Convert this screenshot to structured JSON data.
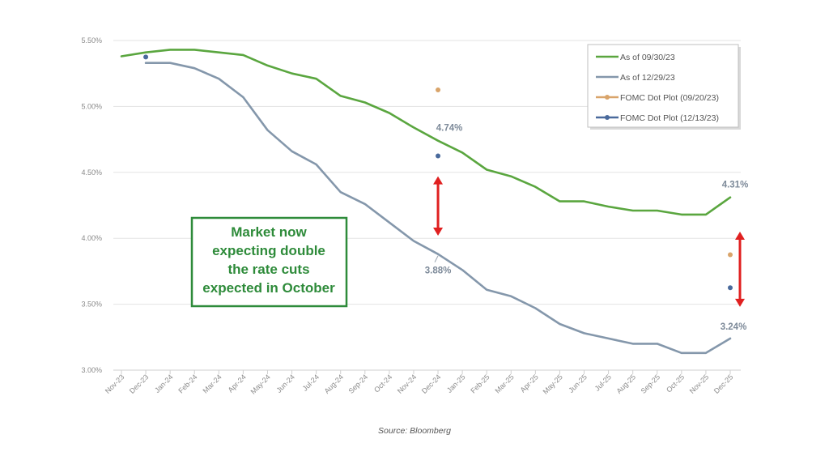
{
  "chart_data": {
    "type": "line",
    "title": "",
    "xlabel": "",
    "ylabel": "",
    "categories": [
      "Nov-23",
      "Dec-23",
      "Jan-24",
      "Feb-24",
      "Mar-24",
      "Apr-24",
      "May-24",
      "Jun-24",
      "Jul-24",
      "Aug-24",
      "Sep-24",
      "Oct-24",
      "Nov-24",
      "Dec-24",
      "Jan-25",
      "Feb-25",
      "Mar-25",
      "Apr-25",
      "May-25",
      "Jun-25",
      "Jul-25",
      "Aug-25",
      "Sep-25",
      "Oct-25",
      "Nov-25",
      "Dec-25"
    ],
    "ylim": [
      3.0,
      5.5
    ],
    "yticks": [
      {
        "value": 5.5,
        "label": "5.50%"
      },
      {
        "value": 5.0,
        "label": "5.00%"
      },
      {
        "value": 4.5,
        "label": "4.50%"
      },
      {
        "value": 4.0,
        "label": "4.00%"
      },
      {
        "value": 3.5,
        "label": "3.50%"
      },
      {
        "value": 3.0,
        "label": "3.00%"
      }
    ],
    "grid": "horizontal",
    "legend_position": "top-right",
    "series": [
      {
        "name": "As of 09/30/23",
        "kind": "line",
        "color": "#5aa63f",
        "x": [
          "Nov-23",
          "Dec-23",
          "Jan-24",
          "Feb-24",
          "Mar-24",
          "Apr-24",
          "May-24",
          "Jun-24",
          "Jul-24",
          "Aug-24",
          "Sep-24",
          "Oct-24",
          "Nov-24",
          "Dec-24",
          "Jan-25",
          "Feb-25",
          "Mar-25",
          "Apr-25",
          "May-25",
          "Jun-25",
          "Jul-25",
          "Aug-25",
          "Sep-25",
          "Oct-25",
          "Nov-25",
          "Dec-25"
        ],
        "values": [
          5.38,
          5.41,
          5.43,
          5.43,
          5.41,
          5.39,
          5.31,
          5.25,
          5.21,
          5.08,
          5.03,
          4.95,
          4.84,
          4.74,
          4.65,
          4.52,
          4.47,
          4.39,
          4.28,
          4.28,
          4.24,
          4.21,
          4.21,
          4.18,
          4.18,
          4.31
        ]
      },
      {
        "name": "As of 12/29/23",
        "kind": "line",
        "color": "#8497ab",
        "x": [
          "Dec-23",
          "Jan-24",
          "Feb-24",
          "Mar-24",
          "Apr-24",
          "May-24",
          "Jun-24",
          "Jul-24",
          "Aug-24",
          "Sep-24",
          "Oct-24",
          "Nov-24",
          "Dec-24",
          "Jan-25",
          "Feb-25",
          "Mar-25",
          "Apr-25",
          "May-25",
          "Jun-25",
          "Jul-25",
          "Aug-25",
          "Sep-25",
          "Oct-25",
          "Nov-25",
          "Dec-25"
        ],
        "values": [
          5.33,
          5.33,
          5.29,
          5.21,
          5.07,
          4.82,
          4.66,
          4.56,
          4.35,
          4.26,
          4.12,
          3.98,
          3.88,
          3.76,
          3.61,
          3.56,
          3.47,
          3.35,
          3.28,
          3.24,
          3.2,
          3.2,
          3.13,
          3.13,
          3.24
        ]
      },
      {
        "name": "FOMC Dot Plot (09/20/23)",
        "kind": "dot",
        "color": "#d9a46a",
        "x": [
          "Dec-24",
          "Dec-25"
        ],
        "values": [
          5.125,
          3.875
        ]
      },
      {
        "name": "FOMC Dot Plot (12/13/23)",
        "kind": "dot",
        "color": "#4a6a9c",
        "x": [
          "Dec-23",
          "Dec-24",
          "Dec-25"
        ],
        "values": [
          5.375,
          4.625,
          3.625
        ]
      }
    ],
    "data_labels": [
      {
        "text": "4.74%",
        "series": "As of 09/30/23",
        "x": "Dec-24",
        "color": "#7d8a99"
      },
      {
        "text": "3.88%",
        "series": "As of 12/29/23",
        "x": "Dec-24",
        "color": "#7d8a99"
      },
      {
        "text": "4.31%",
        "series": "As of 09/30/23",
        "x": "Dec-25",
        "color": "#7d8a99"
      },
      {
        "text": "3.24%",
        "series": "As of 12/29/23",
        "x": "Dec-25",
        "color": "#7d8a99"
      }
    ],
    "arrows": [
      {
        "x": "Dec-24",
        "from": 4.47,
        "to": 4.02,
        "color": "#e02020"
      },
      {
        "x": "Dec-25",
        "from": 4.05,
        "to": 3.48,
        "color": "#e02020"
      }
    ],
    "annotation_box": {
      "lines": [
        "Market now",
        "expecting double",
        "the rate cuts",
        "expected in October"
      ],
      "color": "#2e8b3a"
    }
  },
  "source_note": "Source: Bloomberg"
}
